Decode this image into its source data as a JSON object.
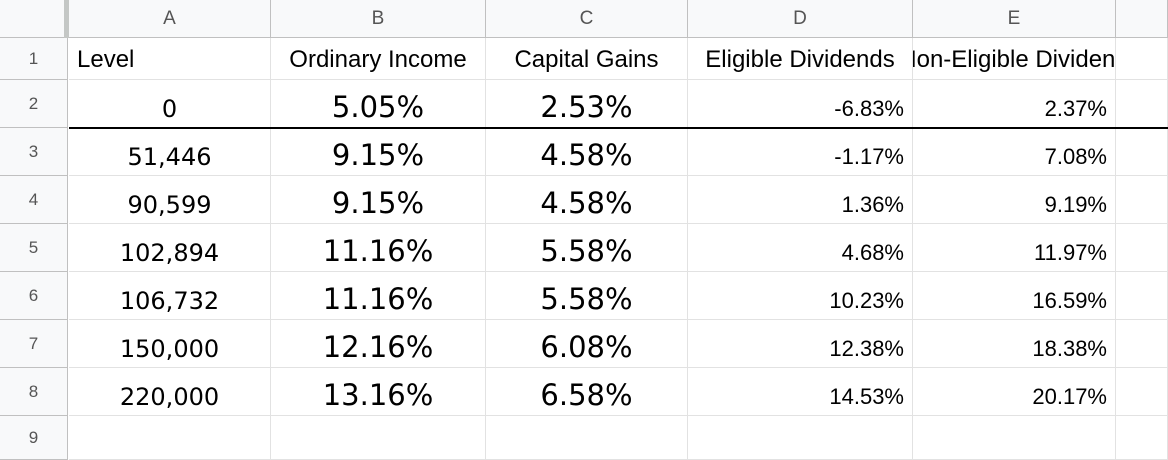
{
  "sheet": {
    "columns": [
      "A",
      "B",
      "C",
      "D",
      "E"
    ],
    "rows": [
      "1",
      "2",
      "3",
      "4",
      "5",
      "6",
      "7",
      "8",
      "9"
    ],
    "headers": [
      "Level",
      "Ordinary Income",
      "Capital Gains",
      "Eligible Dividends",
      "Non-Eligible Dividend"
    ],
    "data": [
      [
        "0",
        "5.05%",
        "2.53%",
        "-6.83%",
        "2.37%"
      ],
      [
        "51,446",
        "9.15%",
        "4.58%",
        "-1.17%",
        "7.08%"
      ],
      [
        "90,599",
        "9.15%",
        "4.58%",
        "1.36%",
        "9.19%"
      ],
      [
        "102,894",
        "11.16%",
        "5.58%",
        "4.68%",
        "11.97%"
      ],
      [
        "106,732",
        "11.16%",
        "5.58%",
        "10.23%",
        "16.59%"
      ],
      [
        "150,000",
        "12.16%",
        "6.08%",
        "12.38%",
        "18.38%"
      ],
      [
        "220,000",
        "13.16%",
        "6.58%",
        "14.53%",
        "20.17%"
      ]
    ]
  }
}
